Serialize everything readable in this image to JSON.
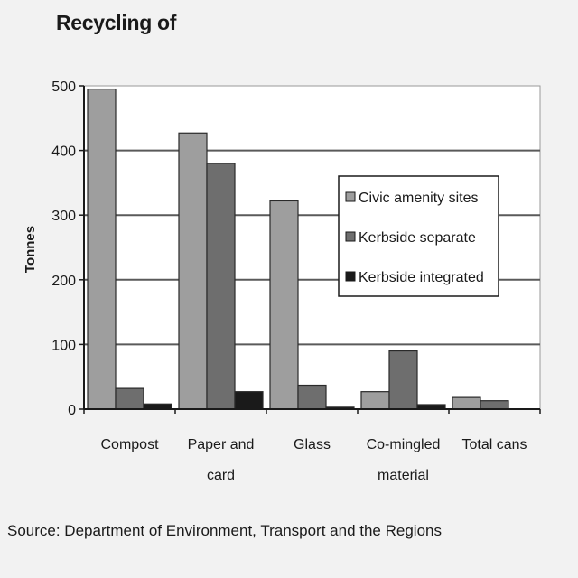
{
  "chart_data": {
    "type": "bar",
    "title": "Recycling of",
    "ylabel": "Tonnes",
    "xlabel": "",
    "ylim": [
      0,
      500
    ],
    "yticks": [
      "0",
      "100",
      "200",
      "300",
      "400",
      "500"
    ],
    "categories": [
      [
        "Compost"
      ],
      [
        "Paper and",
        "card"
      ],
      [
        "Glass"
      ],
      [
        "Co-mingled",
        "material"
      ],
      [
        "Total cans"
      ]
    ],
    "series": [
      {
        "name": "Civic amenity sites",
        "color": "#9e9e9e",
        "values": [
          495,
          427,
          322,
          27,
          18
        ]
      },
      {
        "name": "Kerbside separate",
        "color": "#6e6e6e",
        "values": [
          32,
          380,
          37,
          90,
          13
        ]
      },
      {
        "name": "Kerbside integrated",
        "color": "#1a1a1a",
        "values": [
          8,
          27,
          3,
          7,
          0
        ]
      }
    ],
    "grid": true,
    "legend_position": "right"
  },
  "source": "Source: Department of Environment, Transport and the Regions"
}
